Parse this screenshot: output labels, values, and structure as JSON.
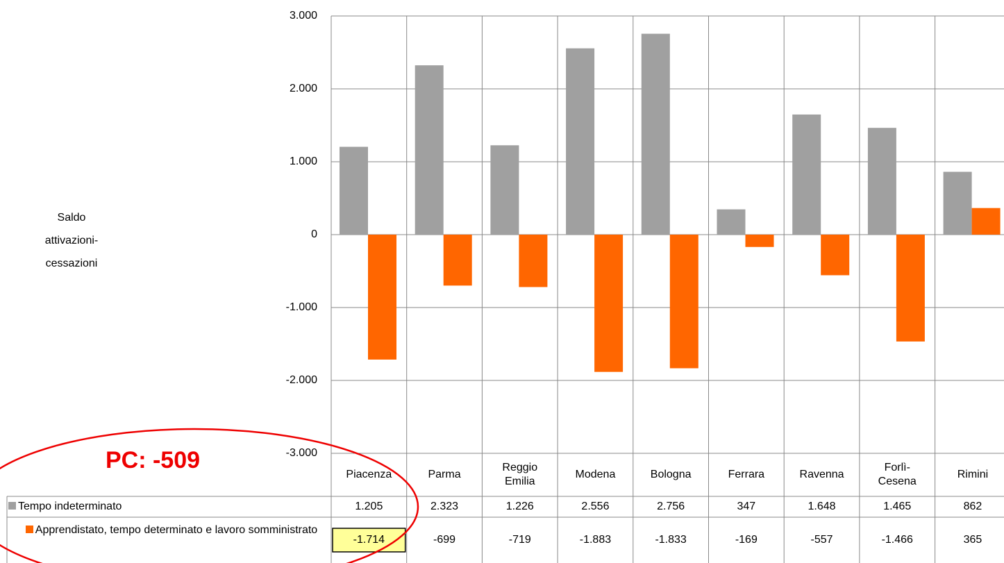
{
  "chart_data": {
    "type": "bar",
    "y_label": "Saldo attivazioni-cessazioni",
    "annotation": "PC: -509",
    "categories": [
      "Piacenza",
      "Parma",
      "Reggio Emilia",
      "Modena",
      "Bologna",
      "Ferrara",
      "Ravenna",
      "Forlì-Cesena",
      "Rimini"
    ],
    "series": [
      {
        "name": "Tempo indeterminato",
        "color": "#a0a0a0",
        "values": [
          1205,
          2323,
          1226,
          2556,
          2756,
          347,
          1648,
          1465,
          862
        ],
        "value_labels": [
          "1.205",
          "2.323",
          "1.226",
          "2.556",
          "2.756",
          "347",
          "1.648",
          "1.465",
          "862"
        ]
      },
      {
        "name": "Apprendistato, tempo determinato e lavoro somministrato",
        "color": "#ff6600",
        "values": [
          -1714,
          -699,
          -719,
          -1883,
          -1833,
          -169,
          -557,
          -1466,
          365
        ],
        "value_labels": [
          "-1.714",
          "-699",
          "-719",
          "-1.883",
          "-1.833",
          "-169",
          "-557",
          "-1.466",
          "365"
        ]
      }
    ],
    "ylim": [
      -3000,
      3000
    ],
    "yticks": [
      {
        "value": -3000,
        "label": "-3.000"
      },
      {
        "value": -2000,
        "label": "-2.000"
      },
      {
        "value": -1000,
        "label": "-1.000"
      },
      0,
      {
        "value": 1000,
        "label": "1.000"
      },
      {
        "value": 2000,
        "label": "2.000"
      },
      {
        "value": 3000,
        "label": "3.000"
      }
    ],
    "grid": true
  }
}
